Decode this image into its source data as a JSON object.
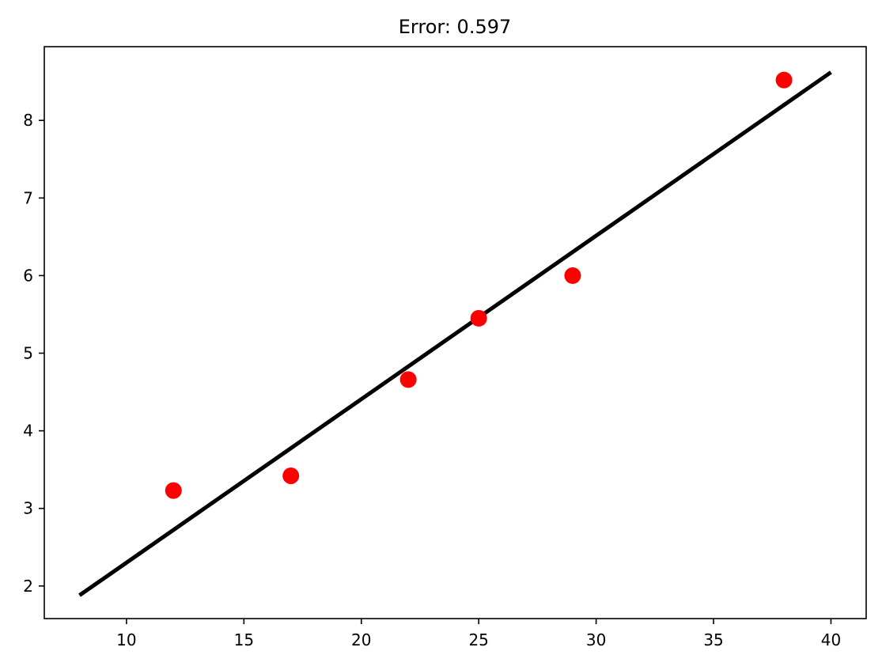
{
  "chart_data": {
    "type": "scatter",
    "title": "Error: 0.597",
    "xlabel": "",
    "ylabel": "",
    "xlim": [
      6.5,
      41.5
    ],
    "ylim": [
      1.58,
      8.95
    ],
    "x_ticks": [
      10,
      15,
      20,
      25,
      30,
      35,
      40
    ],
    "y_ticks": [
      2,
      3,
      4,
      5,
      6,
      7,
      8
    ],
    "grid": false,
    "legend": "none",
    "series": [
      {
        "type": "scatter",
        "color": "#ff0000",
        "points": [
          {
            "x": 12,
            "y": 3.23
          },
          {
            "x": 17,
            "y": 3.42
          },
          {
            "x": 22,
            "y": 4.66
          },
          {
            "x": 25,
            "y": 5.45
          },
          {
            "x": 29,
            "y": 6.0
          },
          {
            "x": 38,
            "y": 8.52
          }
        ]
      },
      {
        "type": "line",
        "color": "#000000",
        "points": [
          {
            "x": 8,
            "y": 1.88
          },
          {
            "x": 40,
            "y": 8.62
          }
        ]
      }
    ]
  }
}
